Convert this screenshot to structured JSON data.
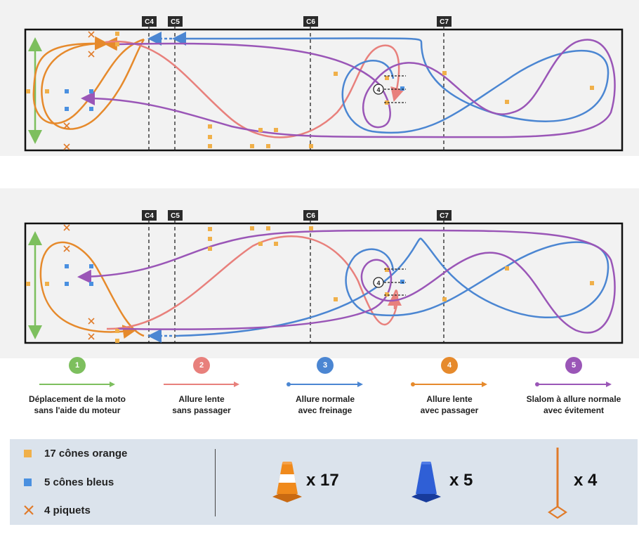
{
  "checkpoints": [
    "C4",
    "C5",
    "C6",
    "C7"
  ],
  "obstacle_number": "4",
  "legend": [
    {
      "number": "1",
      "line1": "Déplacement de la moto",
      "line2": "sans l'aide du moteur",
      "color": "#7dbf5e"
    },
    {
      "number": "2",
      "line1": "Allure lente",
      "line2": "sans passager",
      "color": "#e8807c"
    },
    {
      "number": "3",
      "line1": "Allure normale",
      "line2": "avec freinage",
      "color": "#4b86d2"
    },
    {
      "number": "4",
      "line1": "Allure lente",
      "line2": "avec passager",
      "color": "#e68a2c"
    },
    {
      "number": "5",
      "line1": "Slalom à allure normale",
      "line2": "avec évitement",
      "color": "#9a56b7"
    }
  ],
  "equipment": {
    "orange_cones": {
      "label": "17 cônes orange",
      "count": "x 17",
      "color": "#f0b04a"
    },
    "blue_cones": {
      "label": "5 cônes bleus",
      "count": "x 5",
      "color": "#4a90e0"
    },
    "stakes": {
      "label": "4 piquets",
      "count": "x 4",
      "color": "#e07b2a"
    }
  }
}
